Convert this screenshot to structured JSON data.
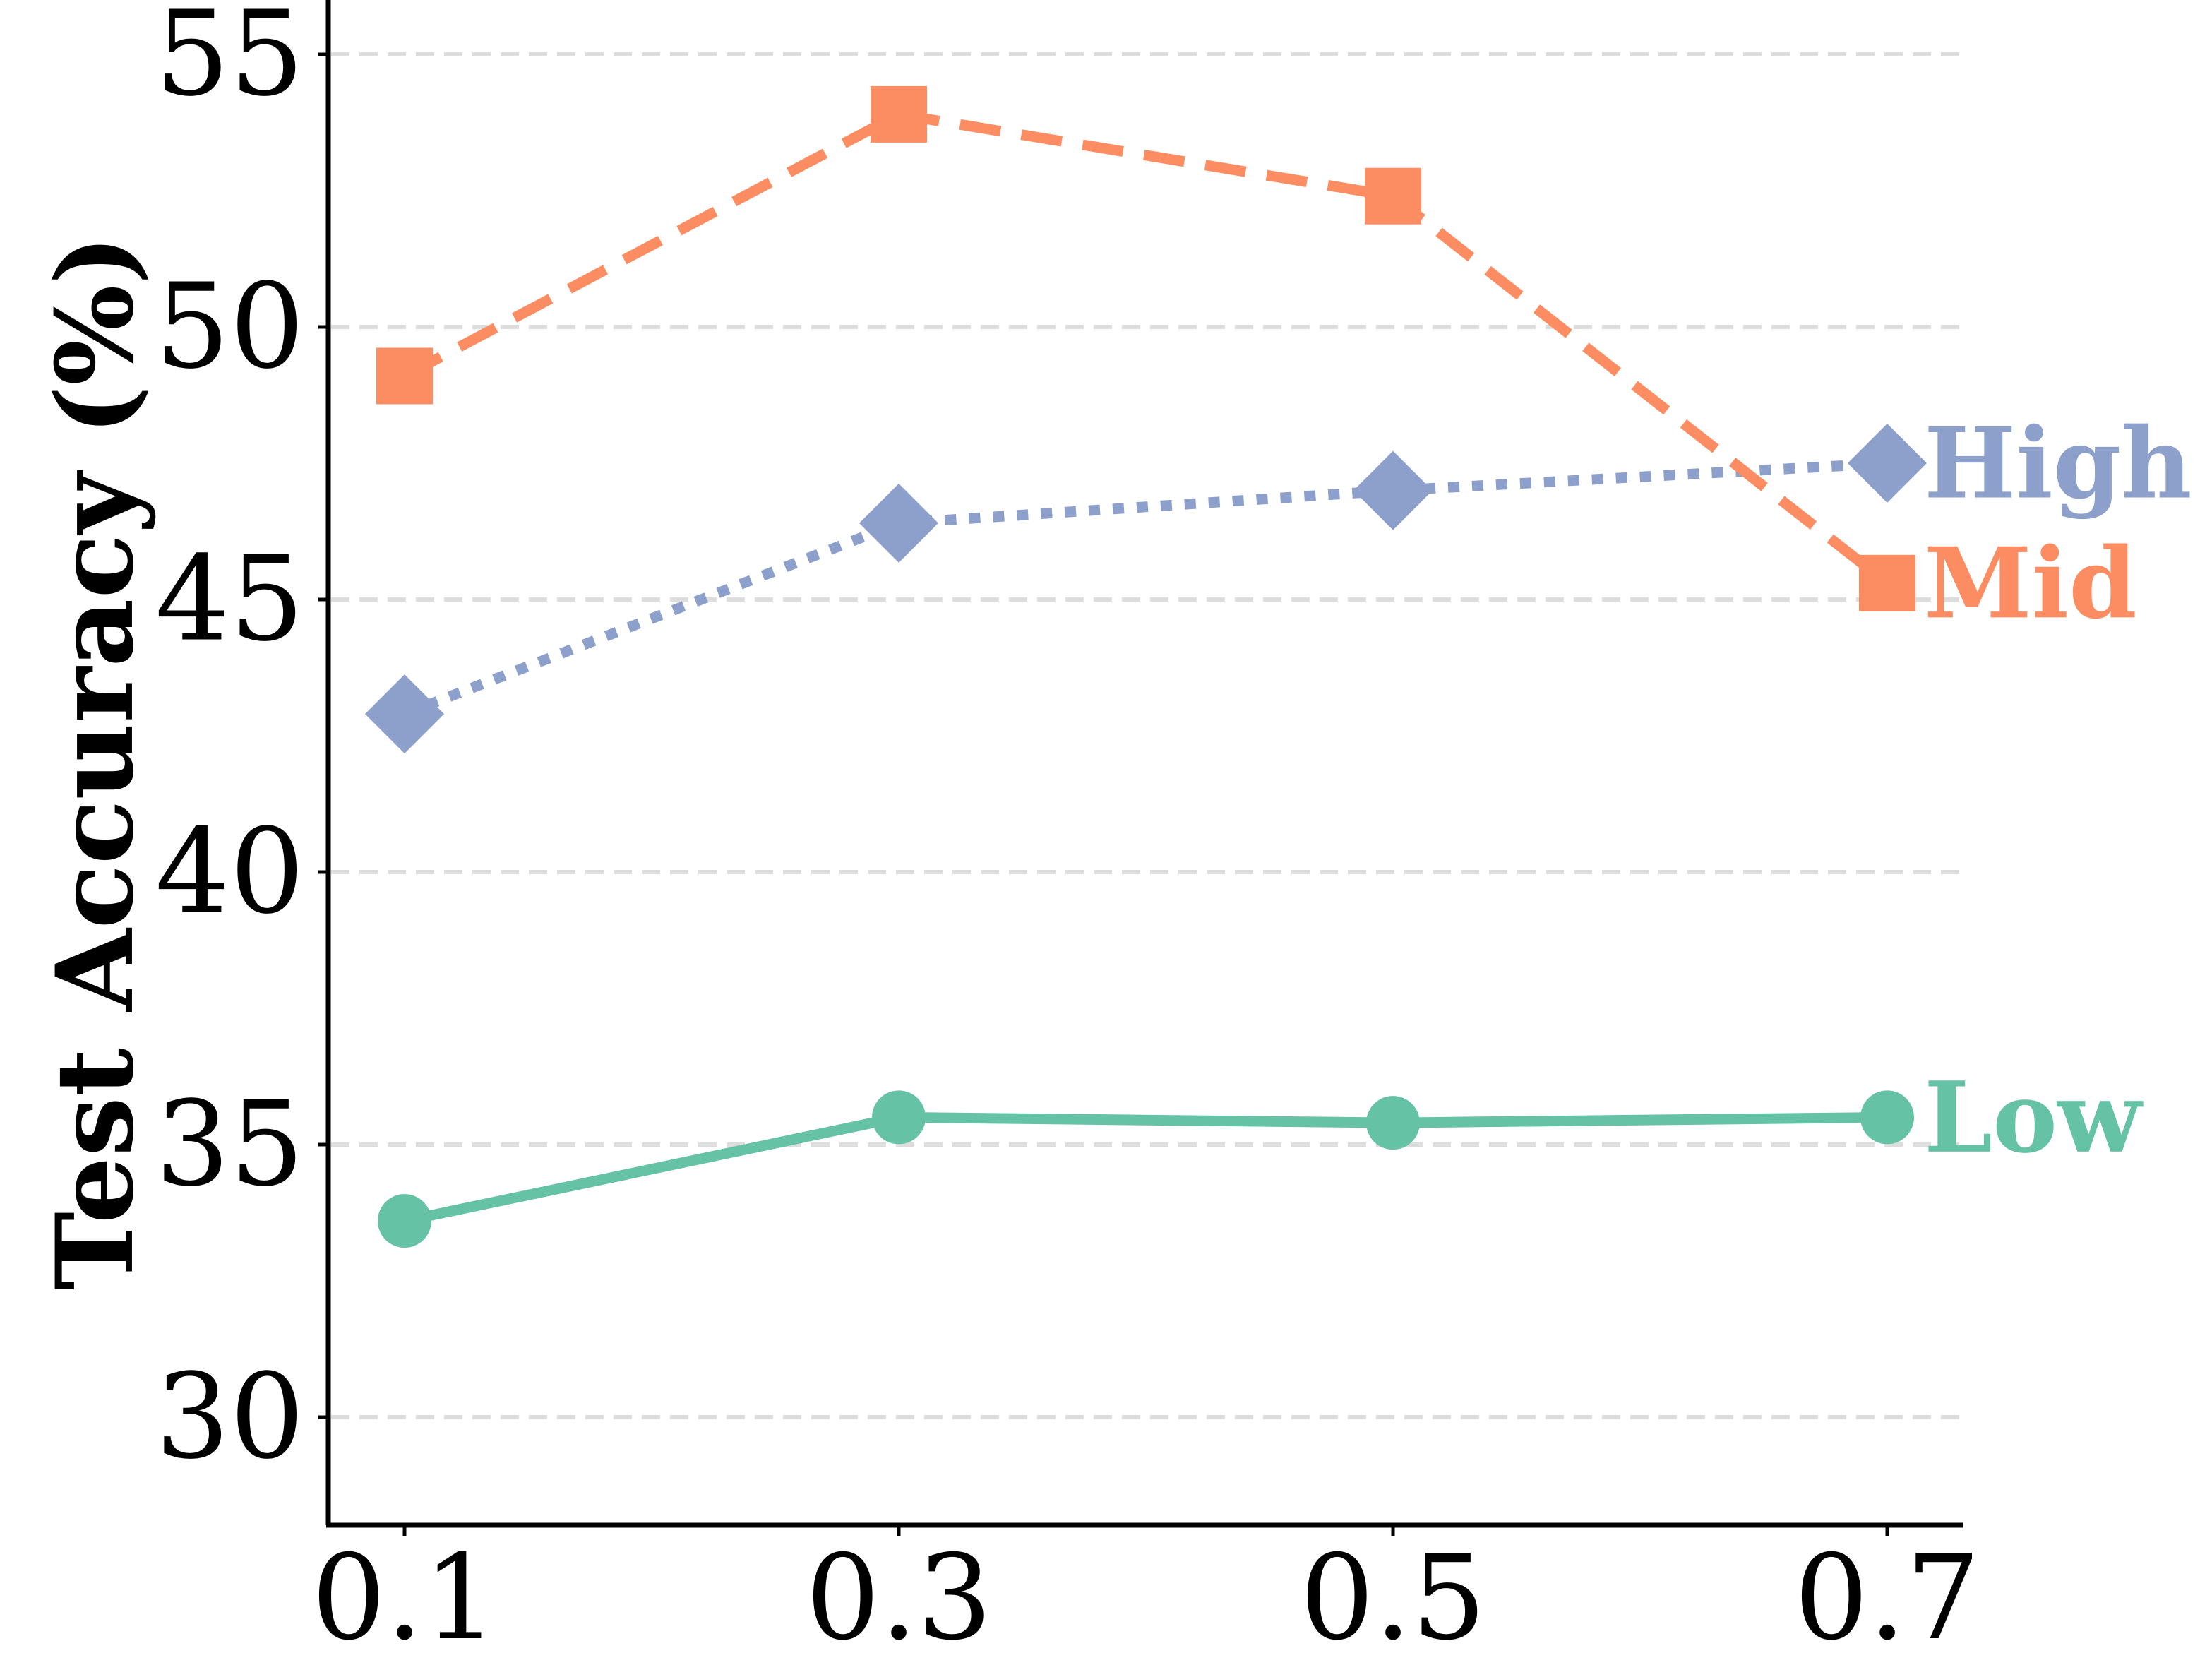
{
  "chart_data": {
    "type": "line",
    "title": "",
    "xlabel": "",
    "ylabel": "Test Accuracy (%)",
    "x": [
      0.1,
      0.3,
      0.5,
      0.7
    ],
    "x_tick_labels": [
      "0.1",
      "0.3",
      "0.5",
      "0.7"
    ],
    "y_ticks": [
      30,
      35,
      40,
      45,
      50,
      55
    ],
    "ylim": [
      28,
      56
    ],
    "grid": "horizontal dashed",
    "legend": "none (series labelled at line ends)",
    "series": [
      {
        "name": "High",
        "values": [
          42.9,
          46.4,
          47.0,
          47.5
        ],
        "color": "#8da0cb",
        "line_style": "dotted",
        "marker": "diamond"
      },
      {
        "name": "Mid",
        "values": [
          49.1,
          53.9,
          52.4,
          45.3
        ],
        "color": "#fc8d62",
        "line_style": "dashed",
        "marker": "square"
      },
      {
        "name": "Low",
        "values": [
          33.6,
          35.5,
          35.4,
          35.5
        ],
        "color": "#66c2a5",
        "line_style": "solid",
        "marker": "circle"
      }
    ]
  }
}
